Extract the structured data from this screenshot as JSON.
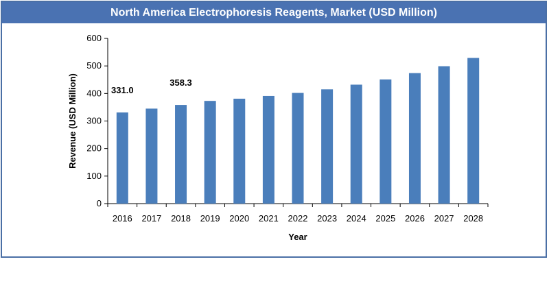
{
  "chart_data": {
    "type": "bar",
    "title": "North America Electrophoresis Reagents, Market (USD Million)",
    "xlabel": "Year",
    "ylabel": "Revenue (USD Million)",
    "categories": [
      "2016",
      "2017",
      "2018",
      "2019",
      "2020",
      "2021",
      "2022",
      "2023",
      "2024",
      "2025",
      "2026",
      "2027",
      "2028"
    ],
    "values": [
      331.0,
      345,
      358.3,
      373,
      381,
      391,
      402,
      415,
      432,
      451,
      474,
      499,
      529
    ],
    "data_labels": [
      {
        "category": "2016",
        "text": "331.0"
      },
      {
        "category": "2018",
        "text": "358.3"
      }
    ],
    "ylim": [
      0,
      600
    ],
    "yticks": [
      0,
      100,
      200,
      300,
      400,
      500,
      600
    ],
    "grid": false,
    "bar_color": "#4a7ebb",
    "title_bar_color": "#4a72b2",
    "frame_color": "#4a6fa5"
  }
}
